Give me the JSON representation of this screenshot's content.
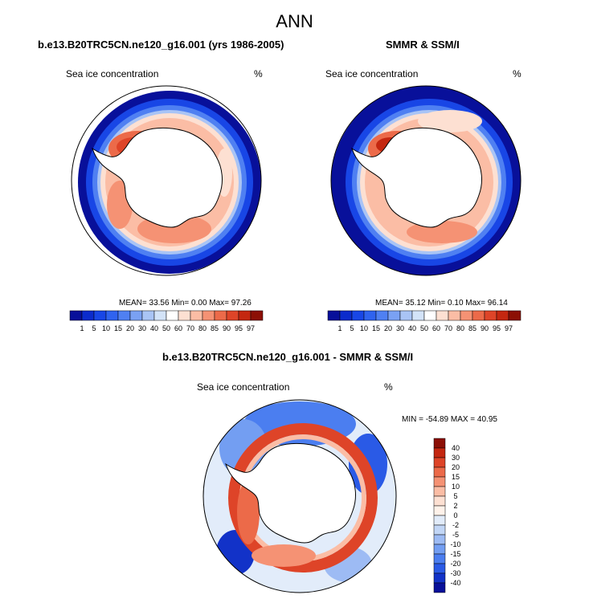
{
  "figure": {
    "title": "ANN"
  },
  "panels": [
    {
      "title": "b.e13.B20TRC5CN.ne120_g16.001 (yrs 1986-2005)",
      "variable": "Sea ice concentration",
      "units": "%",
      "stats": "MEAN=  33.56  Min=   0.00  Max=  97.26"
    },
    {
      "title": "SMMR & SSM/I",
      "variable": "Sea ice concentration",
      "units": "%",
      "stats": "MEAN=  35.12  Min=   0.10  Max=  96.14"
    },
    {
      "title": "b.e13.B20TRC5CN.ne120_g16.001 - SMMR & SSM/I",
      "variable": "Sea ice concentration",
      "units": "%",
      "stats": "MIN = -54.89 MAX =  40.95"
    }
  ],
  "colorbar_conc": {
    "labels": [
      "1",
      "5",
      "10",
      "15",
      "20",
      "30",
      "40",
      "50",
      "60",
      "70",
      "80",
      "85",
      "90",
      "95",
      "97"
    ],
    "colors": [
      "#08109a",
      "#0b2bcc",
      "#1846e6",
      "#2f63ef",
      "#4f80f2",
      "#7aa1f3",
      "#a9c4f5",
      "#d3e3f8",
      "#ffffff",
      "#fde0d2",
      "#fbbda5",
      "#f59274",
      "#ec6a49",
      "#de4428",
      "#c42710",
      "#8c0f05"
    ]
  },
  "colorbar_diff": {
    "labels": [
      "40",
      "30",
      "20",
      "15",
      "10",
      "5",
      "2",
      "0",
      "-2",
      "-5",
      "-10",
      "-15",
      "-20",
      "-30",
      "-40"
    ],
    "colors": [
      "#8c0f05",
      "#c42710",
      "#de4428",
      "#ec6a49",
      "#f59274",
      "#fbbda5",
      "#fde0d2",
      "#fff2ea",
      "#e2ecfa",
      "#c2d6f6",
      "#9dbbf4",
      "#739ef2",
      "#4b7ef0",
      "#2a5ae6",
      "#1232c8",
      "#08109a"
    ]
  }
}
